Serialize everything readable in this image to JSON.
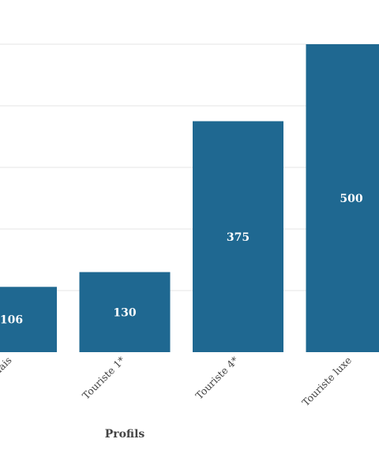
{
  "chart_data": {
    "type": "bar",
    "categories": [
      "…nnais",
      "Touriste 1*",
      "Touriste 4*",
      "Touriste luxe"
    ],
    "values": [
      106,
      130,
      375,
      500
    ],
    "xlabel": "Profils",
    "ylabel": "",
    "ylim": [
      0,
      500
    ],
    "grid": true,
    "colors": {
      "bar": "#1f6891",
      "grid": "#e6e6e6",
      "text": "#444444"
    }
  }
}
